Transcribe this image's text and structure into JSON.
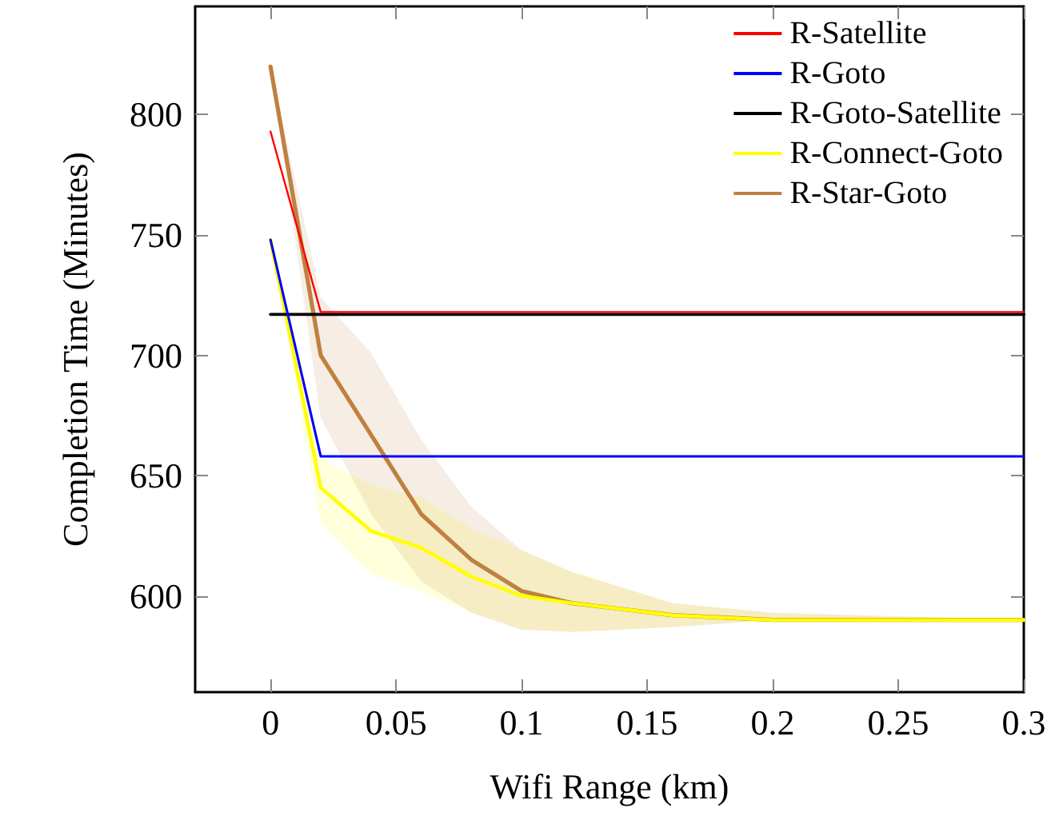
{
  "chart_data": {
    "type": "line",
    "xlabel": "Wifi Range (km)",
    "ylabel": "Completion Time (Minutes)",
    "x": [
      0,
      0.02,
      0.04,
      0.06,
      0.08,
      0.1,
      0.12,
      0.16,
      0.2,
      0.3
    ],
    "xlim": [
      -0.03,
      0.3
    ],
    "xticks": [
      0,
      0.05,
      0.1,
      0.15,
      0.2,
      0.25,
      0.3
    ],
    "ylim": [
      560,
      845
    ],
    "yticks": [
      600,
      650,
      700,
      750,
      800
    ],
    "grid": false,
    "legend": "top right",
    "marker": "none",
    "line_style": "solid",
    "series": [
      {
        "name": "R-Satellite",
        "color": "#ff0000",
        "values": [
          793,
          718,
          718,
          718,
          718,
          718,
          718,
          718,
          718,
          718
        ]
      },
      {
        "name": "R-Goto",
        "color": "#0000ff",
        "values": [
          748,
          658,
          658,
          658,
          658,
          658,
          658,
          658,
          658,
          658
        ]
      },
      {
        "name": "R-Goto-Satellite",
        "color": "#000000",
        "values": [
          717,
          717,
          717,
          717,
          717,
          717,
          717,
          717,
          717,
          717
        ]
      },
      {
        "name": "R-Connect-Goto",
        "color": "#ffff00",
        "values": [
          748,
          645,
          627,
          620,
          608,
          600,
          597,
          592,
          590,
          590
        ],
        "lower": [
          748,
          630,
          609,
          602,
          593,
          586,
          585,
          587,
          590,
          590
        ],
        "upper": [
          748,
          657,
          646,
          641,
          628,
          619,
          610,
          597,
          593,
          590
        ]
      },
      {
        "name": "R-Star-Goto",
        "color": "#bf8040",
        "values": [
          820,
          700,
          667,
          634,
          615,
          602,
          597,
          592,
          590,
          590
        ],
        "lower": [
          820,
          674,
          634,
          606,
          593,
          586,
          585,
          587,
          590,
          590
        ],
        "upper": [
          820,
          724,
          701,
          665,
          637,
          619,
          610,
          597,
          593,
          590
        ]
      }
    ]
  }
}
